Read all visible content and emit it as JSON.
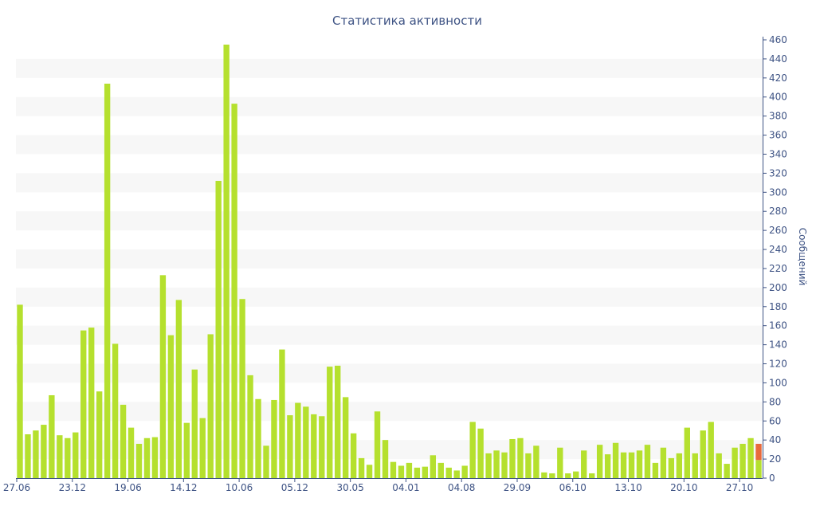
{
  "chart_data": {
    "type": "bar",
    "title": "Статистика активности",
    "xlabel": "",
    "ylabel": "Сообщений",
    "ylim": [
      0,
      460
    ],
    "y_ticks": [
      0,
      20,
      40,
      60,
      80,
      100,
      120,
      140,
      160,
      180,
      200,
      220,
      240,
      260,
      280,
      300,
      320,
      340,
      360,
      380,
      400,
      420,
      440,
      460
    ],
    "y_axis_side": "right",
    "grid": "alternating horizontal bands",
    "x_tick_labels": [
      {
        "label": "27.06",
        "index": 0
      },
      {
        "label": "23.12",
        "index": 7
      },
      {
        "label": "19.06",
        "index": 14
      },
      {
        "label": "14.12",
        "index": 21
      },
      {
        "label": "10.06",
        "index": 28
      },
      {
        "label": "05.12",
        "index": 35
      },
      {
        "label": "30.05",
        "index": 42
      },
      {
        "label": "04.01",
        "index": 49
      },
      {
        "label": "04.08",
        "index": 56
      },
      {
        "label": "29.09",
        "index": 63
      },
      {
        "label": "06.10",
        "index": 70
      },
      {
        "label": "13.10",
        "index": 77
      },
      {
        "label": "20.10",
        "index": 84
      },
      {
        "label": "27.10",
        "index": 91
      }
    ],
    "series": [
      {
        "color": "#b5e02e",
        "values": [
          182,
          46,
          50,
          56,
          87,
          45,
          42,
          48,
          155,
          158,
          91,
          414,
          141,
          77,
          53,
          36,
          42,
          43,
          213,
          150,
          187,
          58,
          114,
          63,
          151,
          312,
          455,
          393,
          188,
          108,
          83,
          34,
          82,
          135,
          66,
          79,
          75,
          67,
          65,
          117,
          118,
          85,
          47,
          21,
          14,
          70,
          40,
          17,
          13,
          16,
          11,
          12,
          24,
          16,
          11,
          8,
          13,
          59,
          52,
          26,
          29,
          27,
          41,
          42,
          26,
          34,
          6,
          5,
          32,
          5,
          7,
          29,
          5,
          35,
          25,
          37,
          27,
          27,
          29,
          35,
          16,
          32,
          21,
          26,
          53,
          26,
          50,
          59,
          26,
          15,
          32,
          36,
          42,
          19
        ]
      },
      {
        "color": "#e86a3c",
        "values": [
          0,
          0,
          0,
          0,
          0,
          0,
          0,
          0,
          0,
          0,
          0,
          0,
          0,
          0,
          0,
          0,
          0,
          0,
          0,
          0,
          0,
          0,
          0,
          0,
          0,
          0,
          0,
          0,
          0,
          0,
          0,
          0,
          0,
          0,
          0,
          0,
          0,
          0,
          0,
          0,
          0,
          0,
          0,
          0,
          0,
          0,
          0,
          0,
          0,
          0,
          0,
          0,
          0,
          0,
          0,
          0,
          0,
          0,
          0,
          0,
          0,
          0,
          0,
          0,
          0,
          0,
          0,
          0,
          0,
          0,
          0,
          0,
          0,
          0,
          0,
          0,
          0,
          0,
          0,
          0,
          0,
          0,
          0,
          0,
          0,
          0,
          0,
          0,
          0,
          0,
          0,
          0,
          0,
          17
        ]
      }
    ],
    "colors": {
      "band": "#f7f7f7",
      "axis": "#3e5384",
      "text": "#3e5384"
    }
  }
}
